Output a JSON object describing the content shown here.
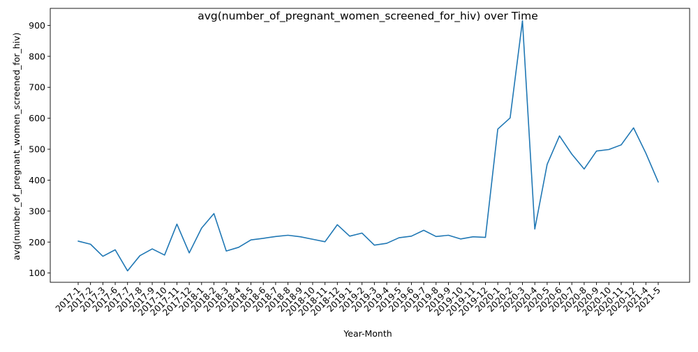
{
  "chart_data": {
    "type": "line",
    "title": "avg(number_of_pregnant_women_screened_for_hiv) over Time",
    "xlabel": "Year-Month",
    "ylabel": "avg(number_of_pregnant_women_screened_for_hiv)",
    "ylim": [
      70,
      955
    ],
    "yticks": [
      100,
      200,
      300,
      400,
      500,
      600,
      700,
      800,
      900
    ],
    "grid": false,
    "legend": "none",
    "line_color": "#1f77b4",
    "categories": [
      "2017-1",
      "2017-2",
      "2017-3",
      "2017-6",
      "2017-7",
      "2017-8",
      "2017-9",
      "2017-10",
      "2017-11",
      "2017-12",
      "2018-1",
      "2018-2",
      "2018-3",
      "2018-4",
      "2018-5",
      "2018-6",
      "2018-7",
      "2018-8",
      "2018-9",
      "2018-10",
      "2018-11",
      "2018-12",
      "2019-1",
      "2019-2",
      "2019-3",
      "2019-4",
      "2019-5",
      "2019-6",
      "2019-7",
      "2019-8",
      "2019-9",
      "2019-10",
      "2019-11",
      "2019-12",
      "2020-1",
      "2020-2",
      "2020-3",
      "2020-4",
      "2020-5",
      "2020-6",
      "2020-7",
      "2020-8",
      "2020-9",
      "2020-10",
      "2020-11",
      "2020-12",
      "2021-4",
      "2021-5"
    ],
    "values": [
      203,
      193,
      154,
      175,
      107,
      156,
      178,
      158,
      258,
      165,
      245,
      292,
      171,
      183,
      207,
      212,
      218,
      222,
      217,
      209,
      201,
      256,
      219,
      229,
      190,
      196,
      214,
      219,
      238,
      218,
      222,
      210,
      217,
      215,
      565,
      601,
      915,
      242,
      451,
      543,
      484,
      436,
      494,
      499,
      514,
      569,
      487,
      394
    ]
  }
}
